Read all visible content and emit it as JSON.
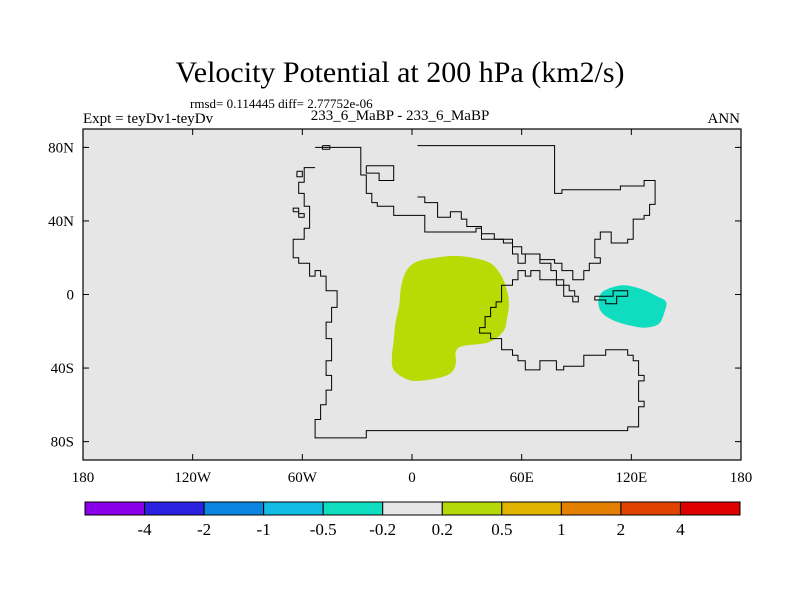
{
  "chart_data": {
    "type": "heatmap",
    "title": "Velocity Potential at 200 hPa (km2/s)",
    "stats_line": "rmsd= 0.114445 diff= 2.77752e-06",
    "left_label": "Expt = teyDv1-teyDv",
    "center_label": "233_6_MaBP - 233_6_MaBP",
    "right_label": "ANN",
    "xlim": [
      -180,
      180
    ],
    "ylim": [
      -90,
      90
    ],
    "x_ticks": [
      {
        "value": -180,
        "label": "180"
      },
      {
        "value": -120,
        "label": "120W"
      },
      {
        "value": -60,
        "label": "60W"
      },
      {
        "value": 0,
        "label": "0"
      },
      {
        "value": 60,
        "label": "60E"
      },
      {
        "value": 120,
        "label": "120E"
      },
      {
        "value": 180,
        "label": "180"
      }
    ],
    "y_ticks": [
      {
        "value": 80,
        "label": "80N"
      },
      {
        "value": 40,
        "label": "40N"
      },
      {
        "value": 0,
        "label": "0"
      },
      {
        "value": -40,
        "label": "40S"
      },
      {
        "value": -80,
        "label": "80S"
      }
    ],
    "background_color": "#e6e6e6",
    "colorbar": {
      "colors": [
        "#8a00e8",
        "#2a22e0",
        "#0a86e0",
        "#12bce4",
        "#10dcc0",
        "#e6e6e6",
        "#b5d80a",
        "#e0b400",
        "#e38000",
        "#e04200",
        "#dc0000"
      ],
      "labels": [
        "-4",
        "-2",
        "-1",
        "-0.5",
        "-0.2",
        "0.2",
        "0.5",
        "1",
        "2",
        "4"
      ]
    },
    "regions": [
      {
        "name": "positive anomaly",
        "color": "#b8da05",
        "lonlat": [
          [
            3,
            18
          ],
          [
            13,
            20
          ],
          [
            23,
            21
          ],
          [
            33,
            20
          ],
          [
            43,
            17
          ],
          [
            49,
            10
          ],
          [
            52,
            2
          ],
          [
            53,
            -5
          ],
          [
            52,
            -13
          ],
          [
            50,
            -20
          ],
          [
            42,
            -26
          ],
          [
            28,
            -28
          ],
          [
            24,
            -31
          ],
          [
            24,
            -37
          ],
          [
            22,
            -42
          ],
          [
            16,
            -45
          ],
          [
            4,
            -47
          ],
          [
            -3,
            -46
          ],
          [
            -10,
            -41
          ],
          [
            -11,
            -34
          ],
          [
            -10,
            -25
          ],
          [
            -9,
            -15
          ],
          [
            -7,
            -6
          ],
          [
            -6,
            4
          ],
          [
            -3,
            13
          ]
        ]
      },
      {
        "name": "negative anomaly",
        "color": "#10dcc0",
        "lonlat": [
          [
            107,
            3
          ],
          [
            115,
            5
          ],
          [
            122,
            4
          ],
          [
            128,
            2
          ],
          [
            134,
            -1
          ],
          [
            139,
            -4
          ],
          [
            138,
            -10
          ],
          [
            135,
            -16
          ],
          [
            128,
            -18
          ],
          [
            120,
            -17
          ],
          [
            110,
            -14
          ],
          [
            104,
            -10
          ],
          [
            102,
            -5
          ],
          [
            103,
            0
          ]
        ]
      }
    ],
    "land_outlines": [
      {
        "name": "western landmass",
        "lonlat": [
          [
            -53,
            80
          ],
          [
            -28,
            80
          ],
          [
            -28,
            65
          ],
          [
            -25,
            65
          ],
          [
            -25,
            55
          ],
          [
            -22,
            55
          ],
          [
            -22,
            50
          ],
          [
            -19,
            50
          ],
          [
            -19,
            48
          ],
          [
            -10,
            48
          ],
          [
            -10,
            43
          ],
          [
            7,
            43
          ],
          [
            7,
            34
          ],
          [
            35,
            34
          ],
          [
            35,
            36
          ],
          [
            38,
            36
          ],
          [
            38,
            33
          ],
          [
            45,
            33
          ],
          [
            45,
            30
          ],
          [
            55,
            30
          ],
          [
            55,
            22
          ],
          [
            58,
            22
          ],
          [
            58,
            17
          ],
          [
            62,
            17
          ],
          [
            62,
            22
          ],
          [
            70,
            22
          ],
          [
            70,
            17
          ],
          [
            76,
            17
          ],
          [
            76,
            13
          ],
          [
            79,
            13
          ],
          [
            79,
            8
          ],
          [
            83,
            8
          ],
          [
            83,
            5
          ],
          [
            86,
            5
          ],
          [
            86,
            2
          ],
          [
            89,
            2
          ],
          [
            89,
            -1
          ],
          [
            91,
            -1
          ],
          [
            91,
            -4
          ],
          [
            88,
            -4
          ],
          [
            88,
            -1
          ],
          [
            83,
            -1
          ],
          [
            83,
            5
          ],
          [
            79,
            5
          ],
          [
            79,
            8
          ],
          [
            70,
            8
          ],
          [
            70,
            13
          ],
          [
            65,
            13
          ],
          [
            65,
            10
          ],
          [
            62,
            10
          ],
          [
            62,
            13
          ],
          [
            58,
            13
          ],
          [
            58,
            8
          ],
          [
            55,
            8
          ],
          [
            55,
            5
          ],
          [
            49,
            5
          ],
          [
            49,
            -4
          ],
          [
            46,
            -4
          ],
          [
            46,
            -7
          ],
          [
            43,
            -7
          ],
          [
            43,
            -12
          ],
          [
            40,
            -12
          ],
          [
            40,
            -18
          ],
          [
            37,
            -18
          ],
          [
            37,
            -21
          ],
          [
            43,
            -21
          ],
          [
            43,
            -24
          ],
          [
            49,
            -24
          ],
          [
            49,
            -30
          ],
          [
            55,
            -30
          ],
          [
            55,
            -33
          ],
          [
            58,
            -33
          ],
          [
            58,
            -36
          ],
          [
            62,
            -36
          ],
          [
            62,
            -41
          ],
          [
            70,
            -41
          ],
          [
            70,
            -36
          ],
          [
            79,
            -36
          ],
          [
            79,
            -41
          ],
          [
            83,
            -41
          ],
          [
            83,
            -39
          ],
          [
            94,
            -39
          ],
          [
            94,
            -33
          ],
          [
            106,
            -33
          ],
          [
            106,
            -30
          ],
          [
            118,
            -30
          ],
          [
            118,
            -33
          ],
          [
            121,
            -33
          ],
          [
            121,
            -36
          ],
          [
            124,
            -36
          ],
          [
            124,
            -44
          ],
          [
            127,
            -44
          ],
          [
            127,
            -47
          ],
          [
            124,
            -47
          ],
          [
            124,
            -58
          ],
          [
            127,
            -58
          ],
          [
            127,
            -61
          ],
          [
            124,
            -61
          ],
          [
            124,
            -72
          ],
          [
            118,
            -72
          ],
          [
            118,
            -74
          ],
          [
            -25,
            -74
          ],
          [
            -25,
            -78
          ],
          [
            -53,
            -78
          ],
          [
            -53,
            -68
          ],
          [
            -50,
            -68
          ],
          [
            -50,
            -60
          ],
          [
            -47,
            -60
          ],
          [
            -47,
            -52
          ],
          [
            -44,
            -52
          ],
          [
            -44,
            -44
          ],
          [
            -47,
            -44
          ],
          [
            -47,
            -36
          ],
          [
            -44,
            -36
          ],
          [
            -44,
            -24
          ],
          [
            -47,
            -24
          ],
          [
            -47,
            -15
          ],
          [
            -44,
            -15
          ],
          [
            -44,
            -7
          ],
          [
            -41,
            -7
          ],
          [
            -41,
            2
          ],
          [
            -47,
            2
          ],
          [
            -47,
            10
          ],
          [
            -50,
            10
          ],
          [
            -50,
            13
          ],
          [
            -53,
            13
          ],
          [
            -53,
            10
          ],
          [
            -56,
            10
          ],
          [
            -56,
            17
          ],
          [
            -62,
            17
          ],
          [
            -62,
            20
          ],
          [
            -65,
            20
          ],
          [
            -65,
            30
          ],
          [
            -59,
            30
          ],
          [
            -59,
            36
          ],
          [
            -56,
            36
          ],
          [
            -56,
            48
          ],
          [
            -59,
            48
          ],
          [
            -59,
            55
          ],
          [
            -62,
            55
          ],
          [
            -62,
            61
          ],
          [
            -59,
            61
          ],
          [
            -59,
            69
          ],
          [
            -53,
            69
          ]
        ]
      },
      {
        "name": "eastern landmass",
        "lonlat": [
          [
            3,
            81
          ],
          [
            78,
            81
          ],
          [
            78,
            55
          ],
          [
            82,
            55
          ],
          [
            82,
            57
          ],
          [
            114,
            57
          ],
          [
            114,
            59
          ],
          [
            127,
            59
          ],
          [
            127,
            62
          ],
          [
            133,
            62
          ],
          [
            133,
            49
          ],
          [
            130,
            49
          ],
          [
            130,
            43
          ],
          [
            127,
            43
          ],
          [
            127,
            41
          ],
          [
            121,
            41
          ],
          [
            121,
            30
          ],
          [
            118,
            30
          ],
          [
            118,
            28
          ],
          [
            109,
            28
          ],
          [
            109,
            34
          ],
          [
            103,
            34
          ],
          [
            103,
            30
          ],
          [
            100,
            30
          ],
          [
            100,
            20
          ],
          [
            103,
            20
          ],
          [
            103,
            17
          ],
          [
            97,
            17
          ],
          [
            97,
            13
          ],
          [
            94,
            13
          ],
          [
            94,
            8
          ],
          [
            88,
            8
          ],
          [
            88,
            13
          ],
          [
            82,
            13
          ],
          [
            82,
            17
          ],
          [
            78,
            17
          ],
          [
            78,
            19
          ],
          [
            70,
            19
          ],
          [
            70,
            22
          ],
          [
            60,
            22
          ],
          [
            60,
            26
          ],
          [
            55,
            26
          ],
          [
            55,
            28
          ],
          [
            50,
            28
          ],
          [
            50,
            30
          ],
          [
            38,
            30
          ],
          [
            38,
            37
          ],
          [
            30,
            37
          ],
          [
            30,
            41
          ],
          [
            27,
            41
          ],
          [
            27,
            45
          ],
          [
            21,
            45
          ],
          [
            21,
            42
          ],
          [
            14,
            42
          ],
          [
            14,
            50
          ],
          [
            7,
            50
          ],
          [
            7,
            53
          ],
          [
            3,
            53
          ]
        ]
      },
      {
        "name": "northern islands",
        "lonlat": [
          [
            -49,
            81
          ],
          [
            -45,
            81
          ],
          [
            -45,
            79
          ],
          [
            -49,
            79
          ],
          [
            -49,
            81
          ]
        ]
      },
      {
        "name": "island group",
        "lonlat": [
          [
            -65,
            45
          ],
          [
            -62,
            45
          ],
          [
            -62,
            42
          ],
          [
            -59,
            42
          ],
          [
            -59,
            44
          ],
          [
            -62,
            44
          ],
          [
            -62,
            47
          ],
          [
            -65,
            47
          ],
          [
            -65,
            45
          ]
        ]
      },
      {
        "name": "central island",
        "lonlat": [
          [
            -25,
            70
          ],
          [
            -10,
            70
          ],
          [
            -10,
            62
          ],
          [
            -18,
            62
          ],
          [
            -18,
            66
          ],
          [
            -25,
            66
          ],
          [
            -25,
            70
          ]
        ]
      },
      {
        "name": "small island",
        "lonlat": [
          [
            -63,
            67
          ],
          [
            -60,
            67
          ],
          [
            -60,
            64
          ],
          [
            -63,
            64
          ],
          [
            -63,
            67
          ]
        ]
      },
      {
        "name": "eastern islands",
        "lonlat": [
          [
            100,
            -1
          ],
          [
            110,
            -1
          ],
          [
            110,
            2
          ],
          [
            118,
            2
          ],
          [
            118,
            -1
          ],
          [
            112,
            -1
          ],
          [
            112,
            -5
          ],
          [
            106,
            -5
          ],
          [
            106,
            -3
          ],
          [
            100,
            -3
          ],
          [
            100,
            -1
          ]
        ]
      }
    ]
  }
}
